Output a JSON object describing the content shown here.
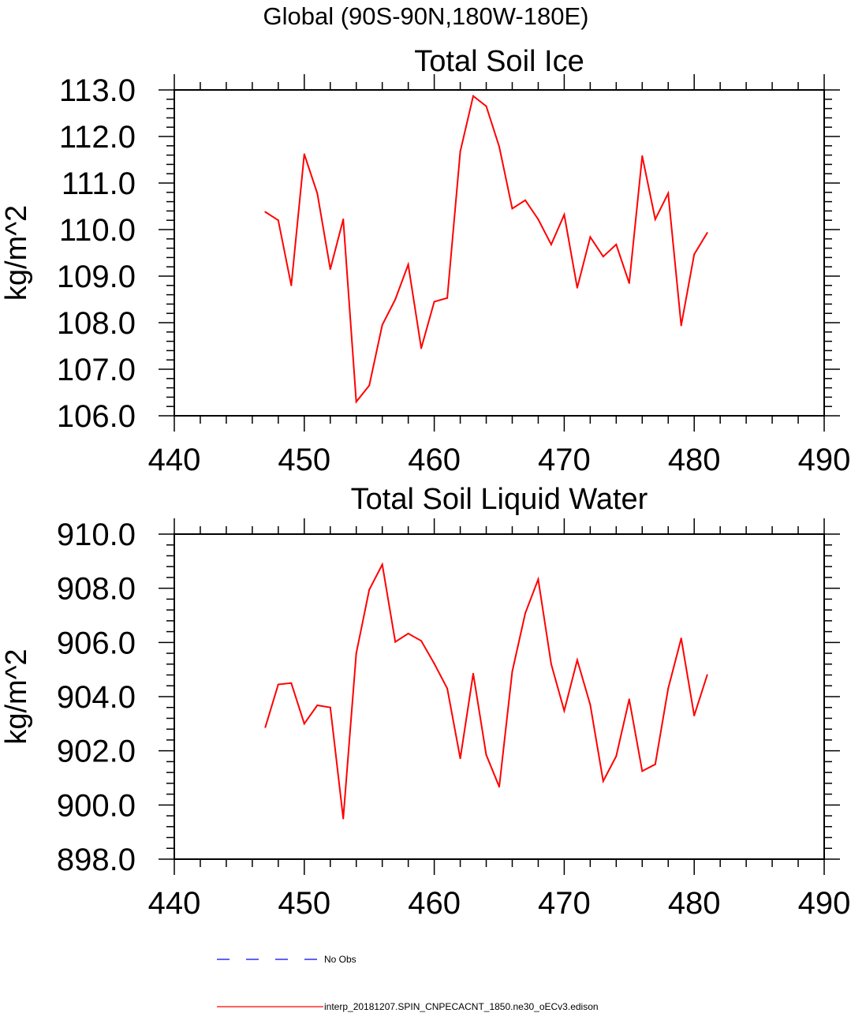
{
  "figure_title": "Global (90S-90N,180W-180E)",
  "legend": {
    "items": [
      {
        "label": "No Obs",
        "color": "#0000ff",
        "style": "dashed"
      },
      {
        "label": "interp_20181207.SPIN_CNPECACNT_1850.ne30_oECv3.edison",
        "color": "#ff0000",
        "style": "solid"
      }
    ]
  },
  "chart_data": [
    {
      "type": "line",
      "title": "Total Soil Ice",
      "xlabel": "",
      "ylabel": "kg/m^2",
      "xlim": [
        440,
        490
      ],
      "ylim": [
        106.0,
        113.0
      ],
      "xticks": [
        "440",
        "450",
        "460",
        "470",
        "480",
        "490"
      ],
      "yticks": [
        "106.0",
        "107.0",
        "108.0",
        "109.0",
        "110.0",
        "111.0",
        "112.0",
        "113.0"
      ],
      "grid": false,
      "series": [
        {
          "name": "interp_20181207.SPIN_CNPECACNT_1850.ne30_oECv3.edison",
          "color": "#ff0000",
          "x": [
            447,
            448,
            449,
            450,
            451,
            452,
            453,
            454,
            455,
            456,
            457,
            458,
            459,
            460,
            461,
            462,
            463,
            464,
            465,
            466,
            467,
            468,
            469,
            470,
            471,
            472,
            473,
            474,
            475,
            476,
            477,
            478,
            479,
            480,
            481
          ],
          "values": [
            110.38,
            110.2,
            108.8,
            111.62,
            110.78,
            109.15,
            110.22,
            106.3,
            106.65,
            107.95,
            108.5,
            109.25,
            107.45,
            108.45,
            108.53,
            111.68,
            112.87,
            112.65,
            111.78,
            110.45,
            110.63,
            110.22,
            109.68,
            110.32,
            108.75,
            109.84,
            109.42,
            109.68,
            108.85,
            111.58,
            110.22,
            110.78,
            107.94,
            109.47,
            109.93
          ]
        }
      ]
    },
    {
      "type": "line",
      "title": "Total Soil Liquid Water",
      "xlabel": "",
      "ylabel": "kg/m^2",
      "xlim": [
        440,
        490
      ],
      "ylim": [
        898.0,
        910.0
      ],
      "xticks": [
        "440",
        "450",
        "460",
        "470",
        "480",
        "490"
      ],
      "yticks": [
        "898.0",
        "900.0",
        "902.0",
        "904.0",
        "906.0",
        "908.0",
        "910.0"
      ],
      "grid": false,
      "series": [
        {
          "name": "interp_20181207.SPIN_CNPECACNT_1850.ne30_oECv3.edison",
          "color": "#ff0000",
          "x": [
            447,
            448,
            449,
            450,
            451,
            452,
            453,
            454,
            455,
            456,
            457,
            458,
            459,
            460,
            461,
            462,
            463,
            464,
            465,
            466,
            467,
            468,
            469,
            470,
            471,
            472,
            473,
            474,
            475,
            476,
            477,
            478,
            479,
            480,
            481
          ],
          "values": [
            902.87,
            904.45,
            904.5,
            903.0,
            903.68,
            903.6,
            899.5,
            905.6,
            907.95,
            908.88,
            906.02,
            906.33,
            906.06,
            905.22,
            904.3,
            901.72,
            904.85,
            901.85,
            900.67,
            904.93,
            907.08,
            908.33,
            905.2,
            903.48,
            905.35,
            903.7,
            900.88,
            901.8,
            903.9,
            901.25,
            901.5,
            904.3,
            906.15,
            903.3,
            904.8
          ]
        }
      ]
    }
  ]
}
